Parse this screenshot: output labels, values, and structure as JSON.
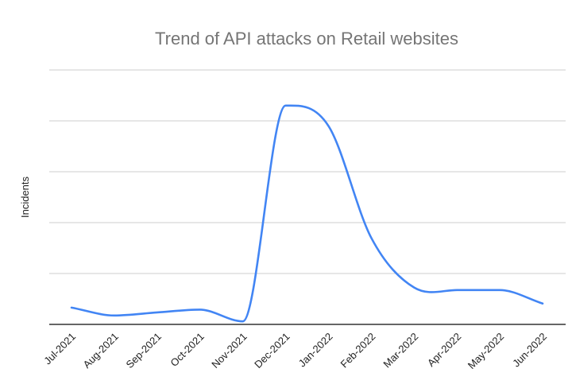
{
  "chart_data": {
    "type": "line",
    "title": "Trend of API attacks on Retail websites",
    "xlabel": "",
    "ylabel": "Incidents",
    "categories": [
      "Jul-2021",
      "Aug-2021",
      "Sep-2021",
      "Oct-2021",
      "Nov-2021",
      "Dec-2021",
      "Jan-2022",
      "Feb-2022",
      "Mar-2022",
      "Apr-2022",
      "May-2022",
      "Jun-2022"
    ],
    "series": [
      {
        "values": [
          6.6,
          3.5,
          4.7,
          5.8,
          1.2,
          86,
          78,
          34,
          14.5,
          13.5,
          13.5,
          8.2
        ]
      }
    ],
    "ylim": [
      0,
      100
    ],
    "grid": true,
    "y_tick_labels_shown": false,
    "legend": "none",
    "colors": {
      "series": "#4285f4",
      "grid": "#cccccc",
      "title": "#757575"
    }
  }
}
